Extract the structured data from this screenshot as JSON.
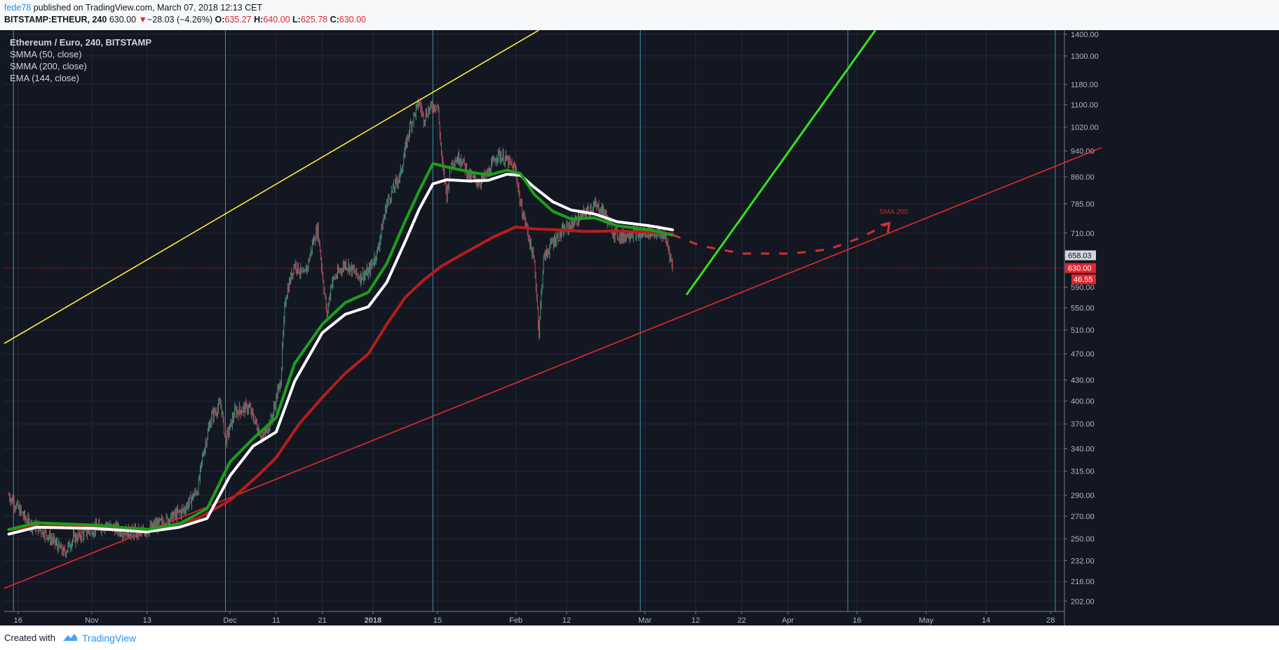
{
  "header": {
    "author": "fede78",
    "published": "published on TradingView.com, March 07, 2018 12:13 CET",
    "symbol": "BITSTAMP:ETHEUR, 240",
    "last": "630.00",
    "change_arrow": "▼",
    "change": "−28.03 (−4.26%)",
    "open_label": "O:",
    "open": "635.27",
    "high_label": "H:",
    "high": "640.00",
    "low_label": "L:",
    "low": "625.78",
    "close_label": "C:",
    "close": "630.00"
  },
  "legend": {
    "title": "Ethereum / Euro, 240, BITSTAMP",
    "items": [
      "SMMA (50, close)",
      "SMMA (200, close)",
      "EMA (144, close)"
    ]
  },
  "footer": {
    "created_with": "Created with",
    "brand": "TradingView"
  },
  "chart_data": {
    "type": "candlestick-line",
    "scale": "log",
    "ylim": [
      195,
      1420
    ],
    "y_ticks": [
      "1400.00",
      "1300.00",
      "1180.00",
      "1100.00",
      "1020.00",
      "940.00",
      "860.00",
      "785.00",
      "710.00",
      "658.03",
      "630.00",
      "590.00",
      "550.00",
      "510.00",
      "470.00",
      "430.00",
      "400.00",
      "370.00",
      "340.00",
      "315.00",
      "290.00",
      "270.00",
      "250.00",
      "232.00",
      "216.00",
      "202.00"
    ],
    "x_ticks": [
      {
        "label": "16",
        "date": "2017-10-16"
      },
      {
        "label": "Nov",
        "date": "2017-11-01"
      },
      {
        "label": "13",
        "date": "2017-11-13"
      },
      {
        "label": "Dec",
        "date": "2017-12-01"
      },
      {
        "label": "11",
        "date": "2017-12-11"
      },
      {
        "label": "21",
        "date": "2017-12-21"
      },
      {
        "label": "2018",
        "date": "2018-01-01"
      },
      {
        "label": "15",
        "date": "2018-01-15"
      },
      {
        "label": "Feb",
        "date": "2018-02-01"
      },
      {
        "label": "12",
        "date": "2018-02-12"
      },
      {
        "label": "Mar",
        "date": "2018-03-01"
      },
      {
        "label": "12",
        "date": "2018-03-12"
      },
      {
        "label": "22",
        "date": "2018-03-22"
      },
      {
        "label": "Apr",
        "date": "2018-04-01"
      },
      {
        "label": "16",
        "date": "2018-04-16"
      },
      {
        "label": "May",
        "date": "2018-05-01"
      },
      {
        "label": "14",
        "date": "2018-05-14"
      },
      {
        "label": "28",
        "date": "2018-05-28"
      }
    ],
    "price_points": [
      [
        "2017-10-14",
        290
      ],
      [
        "2017-10-18",
        265
      ],
      [
        "2017-10-22",
        255
      ],
      [
        "2017-10-26",
        238
      ],
      [
        "2017-10-28",
        250
      ],
      [
        "2017-11-01",
        258
      ],
      [
        "2017-11-04",
        262
      ],
      [
        "2017-11-08",
        256
      ],
      [
        "2017-11-12",
        255
      ],
      [
        "2017-11-15",
        262
      ],
      [
        "2017-11-18",
        268
      ],
      [
        "2017-11-21",
        276
      ],
      [
        "2017-11-24",
        296
      ],
      [
        "2017-11-25",
        330
      ],
      [
        "2017-11-27",
        380
      ],
      [
        "2017-11-29",
        396
      ],
      [
        "2017-11-30",
        348
      ],
      [
        "2017-12-02",
        385
      ],
      [
        "2017-12-05",
        392
      ],
      [
        "2017-12-08",
        352
      ],
      [
        "2017-12-10",
        376
      ],
      [
        "2017-12-12",
        430
      ],
      [
        "2017-12-13",
        568
      ],
      [
        "2017-12-15",
        640
      ],
      [
        "2017-12-17",
        612
      ],
      [
        "2017-12-18",
        642
      ],
      [
        "2017-12-19",
        690
      ],
      [
        "2017-12-20",
        720
      ],
      [
        "2017-12-21",
        620
      ],
      [
        "2017-12-22",
        535
      ],
      [
        "2017-12-23",
        600
      ],
      [
        "2017-12-26",
        640
      ],
      [
        "2017-12-29",
        612
      ],
      [
        "2017-12-31",
        620
      ],
      [
        "2018-01-02",
        668
      ],
      [
        "2018-01-04",
        786
      ],
      [
        "2018-01-07",
        870
      ],
      [
        "2018-01-09",
        1020
      ],
      [
        "2018-01-11",
        1110
      ],
      [
        "2018-01-12",
        1050
      ],
      [
        "2018-01-13",
        1080
      ],
      [
        "2018-01-14",
        1095
      ],
      [
        "2018-01-15",
        1100
      ],
      [
        "2018-01-16",
        900
      ],
      [
        "2018-01-17",
        810
      ],
      [
        "2018-01-18",
        905
      ],
      [
        "2018-01-20",
        920
      ],
      [
        "2018-01-22",
        860
      ],
      [
        "2018-01-24",
        845
      ],
      [
        "2018-01-26",
        870
      ],
      [
        "2018-01-28",
        930
      ],
      [
        "2018-01-30",
        910
      ],
      [
        "2018-02-01",
        880
      ],
      [
        "2018-02-02",
        780
      ],
      [
        "2018-02-03",
        740
      ],
      [
        "2018-02-05",
        640
      ],
      [
        "2018-02-06",
        505
      ],
      [
        "2018-02-07",
        650
      ],
      [
        "2018-02-09",
        690
      ],
      [
        "2018-02-12",
        722
      ],
      [
        "2018-02-15",
        750
      ],
      [
        "2018-02-18",
        780
      ],
      [
        "2018-02-20",
        765
      ],
      [
        "2018-02-22",
        715
      ],
      [
        "2018-02-24",
        700
      ],
      [
        "2018-02-26",
        712
      ],
      [
        "2018-02-28",
        708
      ],
      [
        "2018-03-02",
        715
      ],
      [
        "2018-03-05",
        705
      ],
      [
        "2018-03-06",
        680
      ],
      [
        "2018-03-07",
        630
      ]
    ],
    "series": [
      {
        "name": "SMMA (50, close)",
        "color": "#1aa11a",
        "points": [
          [
            "2017-10-14",
            258
          ],
          [
            "2017-10-20",
            264
          ],
          [
            "2017-11-01",
            262
          ],
          [
            "2017-11-13",
            258
          ],
          [
            "2017-11-20",
            263
          ],
          [
            "2017-11-26",
            277
          ],
          [
            "2017-12-01",
            325
          ],
          [
            "2017-12-06",
            352
          ],
          [
            "2017-12-11",
            378
          ],
          [
            "2017-12-15",
            455
          ],
          [
            "2017-12-21",
            520
          ],
          [
            "2017-12-26",
            560
          ],
          [
            "2017-12-31",
            580
          ],
          [
            "2018-01-04",
            640
          ],
          [
            "2018-01-08",
            740
          ],
          [
            "2018-01-11",
            820
          ],
          [
            "2018-01-14",
            900
          ],
          [
            "2018-01-17",
            890
          ],
          [
            "2018-01-22",
            875
          ],
          [
            "2018-01-26",
            865
          ],
          [
            "2018-01-30",
            880
          ],
          [
            "2018-02-02",
            870
          ],
          [
            "2018-02-05",
            810
          ],
          [
            "2018-02-09",
            765
          ],
          [
            "2018-02-13",
            745
          ],
          [
            "2018-02-18",
            748
          ],
          [
            "2018-02-23",
            728
          ],
          [
            "2018-03-02",
            718
          ],
          [
            "2018-03-07",
            705
          ]
        ]
      },
      {
        "name": "SMMA (200, close)",
        "color": "#ffffff",
        "points": [
          [
            "2017-10-14",
            254
          ],
          [
            "2017-10-20",
            260
          ],
          [
            "2017-11-01",
            259
          ],
          [
            "2017-11-13",
            256
          ],
          [
            "2017-11-20",
            260
          ],
          [
            "2017-11-26",
            268
          ],
          [
            "2017-12-01",
            310
          ],
          [
            "2017-12-06",
            343
          ],
          [
            "2017-12-11",
            360
          ],
          [
            "2017-12-15",
            428
          ],
          [
            "2017-12-21",
            505
          ],
          [
            "2017-12-26",
            538
          ],
          [
            "2017-12-31",
            552
          ],
          [
            "2018-01-04",
            600
          ],
          [
            "2018-01-08",
            690
          ],
          [
            "2018-01-11",
            770
          ],
          [
            "2018-01-14",
            840
          ],
          [
            "2018-01-17",
            852
          ],
          [
            "2018-01-22",
            848
          ],
          [
            "2018-01-26",
            850
          ],
          [
            "2018-01-30",
            868
          ],
          [
            "2018-02-02",
            865
          ],
          [
            "2018-02-05",
            830
          ],
          [
            "2018-02-09",
            790
          ],
          [
            "2018-02-13",
            768
          ],
          [
            "2018-02-18",
            758
          ],
          [
            "2018-02-23",
            738
          ],
          [
            "2018-03-02",
            728
          ],
          [
            "2018-03-07",
            718
          ]
        ]
      },
      {
        "name": "EMA (144, close)",
        "color": "#b71c1c",
        "points": [
          [
            "2017-10-14",
            258
          ],
          [
            "2017-10-24",
            262
          ],
          [
            "2017-11-05",
            259
          ],
          [
            "2017-11-15",
            258
          ],
          [
            "2017-11-24",
            268
          ],
          [
            "2017-12-01",
            285
          ],
          [
            "2017-12-07",
            310
          ],
          [
            "2017-12-11",
            330
          ],
          [
            "2017-12-16",
            370
          ],
          [
            "2017-12-21",
            405
          ],
          [
            "2017-12-26",
            440
          ],
          [
            "2017-12-31",
            470
          ],
          [
            "2018-01-04",
            520
          ],
          [
            "2018-01-08",
            570
          ],
          [
            "2018-01-12",
            605
          ],
          [
            "2018-01-16",
            635
          ],
          [
            "2018-01-22",
            670
          ],
          [
            "2018-01-27",
            700
          ],
          [
            "2018-02-01",
            725
          ],
          [
            "2018-02-05",
            720
          ],
          [
            "2018-02-10",
            718
          ],
          [
            "2018-02-16",
            714
          ],
          [
            "2018-02-23",
            715
          ],
          [
            "2018-03-02",
            712
          ],
          [
            "2018-03-07",
            708
          ]
        ]
      }
    ],
    "projection": {
      "name": "SMA 200",
      "color": "#d32f2f",
      "points": [
        [
          "2018-03-07",
          706
        ],
        [
          "2018-03-13",
          680
        ],
        [
          "2018-03-22",
          662
        ],
        [
          "2018-04-02",
          662
        ],
        [
          "2018-04-10",
          672
        ],
        [
          "2018-04-17",
          700
        ],
        [
          "2018-04-23",
          735
        ]
      ]
    },
    "current_price": 630.0,
    "price_marker_labels": {
      "upper": "658.03",
      "current": "630.00",
      "diff": "46.55"
    },
    "vertical_markers": [
      "2017-10-15",
      "2017-11-30",
      "2018-01-14",
      "2018-02-28",
      "2018-04-14",
      "2018-05-29"
    ],
    "trendlines": [
      {
        "color": "#ffeb3b",
        "from": [
          "2017-10-13",
          487
        ],
        "to": [
          "2018-02-06",
          1420
        ]
      },
      {
        "color": "#e52a2a",
        "from": [
          "2017-10-13",
          211
        ],
        "to": [
          "2018-06-08",
          950
        ]
      },
      {
        "color": "#38e01f",
        "from": [
          "2018-03-10",
          575
        ],
        "to": [
          "2018-04-20",
          1420
        ]
      }
    ]
  }
}
